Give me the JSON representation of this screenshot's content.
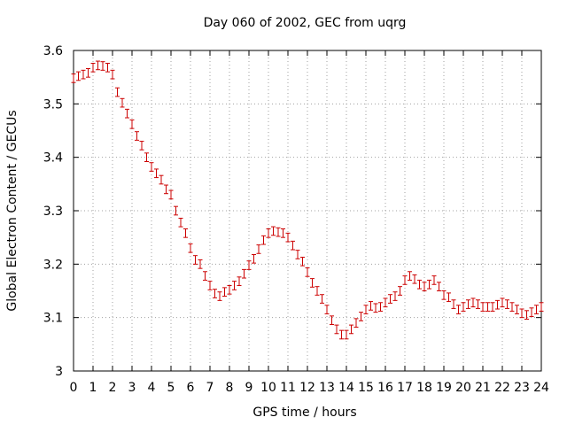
{
  "chart_data": {
    "type": "line",
    "title": "Day 060 of 2002, GEC from uqrg",
    "xlabel": "GPS time / hours",
    "ylabel": "Global Electron Content / GECUs",
    "xlim": [
      0,
      24
    ],
    "ylim": [
      3.0,
      3.6
    ],
    "xticks": [
      0,
      1,
      2,
      3,
      4,
      5,
      6,
      7,
      8,
      9,
      10,
      11,
      12,
      13,
      14,
      15,
      16,
      17,
      18,
      19,
      20,
      21,
      22,
      23,
      24
    ],
    "xtick_labels": [
      "0",
      "1",
      "2",
      "3",
      "4",
      "5",
      "6",
      "7",
      "8",
      "9",
      "10",
      "11",
      "12",
      "13",
      "14",
      "15",
      "16",
      "17",
      "18",
      "19",
      "20",
      "21",
      "22",
      "23",
      "24"
    ],
    "yticks": [
      3.0,
      3.1,
      3.2,
      3.3,
      3.4,
      3.5,
      3.6
    ],
    "ytick_labels": [
      "3",
      "3.1",
      "3.2",
      "3.3",
      "3.4",
      "3.5",
      "3.6"
    ],
    "grid": true,
    "series": [
      {
        "color": "#cc0000",
        "error": 0.008,
        "x": [
          0.0,
          0.25,
          0.5,
          0.75,
          1.0,
          1.25,
          1.5,
          1.75,
          2.0,
          2.25,
          2.5,
          2.75,
          3.0,
          3.25,
          3.5,
          3.75,
          4.0,
          4.25,
          4.5,
          4.75,
          5.0,
          5.25,
          5.5,
          5.75,
          6.0,
          6.25,
          6.5,
          6.75,
          7.0,
          7.25,
          7.5,
          7.75,
          8.0,
          8.25,
          8.5,
          8.75,
          9.0,
          9.25,
          9.5,
          9.75,
          10.0,
          10.25,
          10.5,
          10.75,
          11.0,
          11.25,
          11.5,
          11.75,
          12.0,
          12.25,
          12.5,
          12.75,
          13.0,
          13.25,
          13.5,
          13.75,
          14.0,
          14.25,
          14.5,
          14.75,
          15.0,
          15.25,
          15.5,
          15.75,
          16.0,
          16.25,
          16.5,
          16.75,
          17.0,
          17.25,
          17.5,
          17.75,
          18.0,
          18.25,
          18.5,
          18.75,
          19.0,
          19.25,
          19.5,
          19.75,
          20.0,
          20.25,
          20.5,
          20.75,
          21.0,
          21.25,
          21.5,
          21.75,
          22.0,
          22.25,
          22.5,
          22.75,
          23.0,
          23.25,
          23.5,
          23.75,
          24.0
        ],
        "values": [
          3.548,
          3.552,
          3.555,
          3.558,
          3.568,
          3.572,
          3.571,
          3.568,
          3.555,
          3.522,
          3.502,
          3.482,
          3.462,
          3.44,
          3.422,
          3.4,
          3.382,
          3.37,
          3.358,
          3.34,
          3.33,
          3.3,
          3.278,
          3.258,
          3.23,
          3.208,
          3.2,
          3.178,
          3.16,
          3.145,
          3.14,
          3.148,
          3.152,
          3.16,
          3.168,
          3.182,
          3.198,
          3.21,
          3.228,
          3.245,
          3.258,
          3.262,
          3.26,
          3.258,
          3.25,
          3.235,
          3.218,
          3.205,
          3.185,
          3.165,
          3.15,
          3.135,
          3.115,
          3.095,
          3.078,
          3.068,
          3.068,
          3.078,
          3.09,
          3.102,
          3.115,
          3.122,
          3.118,
          3.12,
          3.128,
          3.135,
          3.14,
          3.15,
          3.17,
          3.178,
          3.172,
          3.162,
          3.158,
          3.162,
          3.17,
          3.158,
          3.142,
          3.138,
          3.125,
          3.115,
          3.12,
          3.125,
          3.128,
          3.125,
          3.12,
          3.12,
          3.12,
          3.124,
          3.128,
          3.125,
          3.12,
          3.115,
          3.108,
          3.105,
          3.11,
          3.115,
          3.12
        ]
      }
    ]
  }
}
